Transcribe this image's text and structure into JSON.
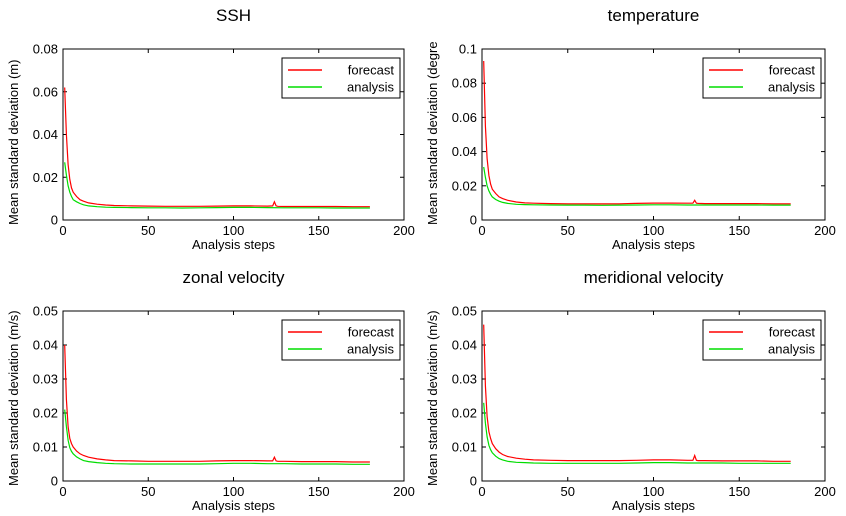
{
  "colors": {
    "forecast": "#ff0000",
    "analysis": "#00dd00",
    "axis": "#000000",
    "background": "#ffffff"
  },
  "chart_data": [
    {
      "type": "line",
      "title": "SSH",
      "xlabel": "Analysis steps",
      "ylabel": "Mean standard deviation (m)",
      "xlim": [
        0,
        200
      ],
      "ylim": [
        0,
        0.08
      ],
      "xticks": [
        0,
        50,
        100,
        150,
        200
      ],
      "yticks": [
        0,
        0.02,
        0.04,
        0.06,
        0.08
      ],
      "x_tick_labels": [
        "0",
        "50",
        "100",
        "150",
        "200"
      ],
      "y_tick_labels": [
        "0",
        "0.02",
        "0.04",
        "0.06",
        "0.08"
      ],
      "legend_position": "top-right",
      "series": [
        {
          "name": "forecast",
          "color": "#ff0000",
          "x": [
            1,
            2,
            3,
            4,
            5,
            6,
            8,
            10,
            12,
            15,
            20,
            25,
            30,
            40,
            50,
            60,
            70,
            80,
            90,
            100,
            110,
            120,
            123,
            124,
            125,
            126,
            130,
            140,
            150,
            160,
            170,
            180
          ],
          "y": [
            0.062,
            0.04,
            0.026,
            0.019,
            0.015,
            0.013,
            0.011,
            0.0095,
            0.0088,
            0.008,
            0.0074,
            0.007,
            0.0068,
            0.0066,
            0.0065,
            0.0064,
            0.0064,
            0.0064,
            0.0065,
            0.0066,
            0.0066,
            0.0065,
            0.0066,
            0.0085,
            0.0066,
            0.0064,
            0.0063,
            0.0063,
            0.0063,
            0.0063,
            0.0062,
            0.0062
          ]
        },
        {
          "name": "analysis",
          "color": "#00dd00",
          "x": [
            1,
            2,
            3,
            4,
            5,
            6,
            8,
            10,
            12,
            15,
            20,
            25,
            30,
            40,
            50,
            60,
            70,
            80,
            90,
            100,
            110,
            120,
            130,
            140,
            150,
            160,
            170,
            180
          ],
          "y": [
            0.027,
            0.021,
            0.016,
            0.013,
            0.011,
            0.0095,
            0.0085,
            0.0077,
            0.0071,
            0.0066,
            0.0062,
            0.006,
            0.0059,
            0.0058,
            0.0057,
            0.0057,
            0.0056,
            0.0057,
            0.0058,
            0.0059,
            0.0059,
            0.0058,
            0.0057,
            0.0057,
            0.0057,
            0.0056,
            0.0056,
            0.0056
          ]
        }
      ]
    },
    {
      "type": "line",
      "title": "temperature",
      "xlabel": "Analysis steps",
      "ylabel": "Mean standard deviation (degre",
      "xlim": [
        0,
        200
      ],
      "ylim": [
        0,
        0.1
      ],
      "xticks": [
        0,
        50,
        100,
        150,
        200
      ],
      "yticks": [
        0,
        0.02,
        0.04,
        0.06,
        0.08,
        0.1
      ],
      "x_tick_labels": [
        "0",
        "50",
        "100",
        "150",
        "200"
      ],
      "y_tick_labels": [
        "0",
        "0.02",
        "0.04",
        "0.06",
        "0.08",
        "0.1"
      ],
      "legend_position": "top-right",
      "series": [
        {
          "name": "forecast",
          "color": "#ff0000",
          "x": [
            1,
            2,
            3,
            4,
            5,
            6,
            8,
            10,
            12,
            15,
            20,
            25,
            30,
            40,
            50,
            60,
            70,
            80,
            90,
            100,
            110,
            120,
            123,
            124,
            125,
            126,
            130,
            140,
            150,
            160,
            170,
            180
          ],
          "y": [
            0.093,
            0.055,
            0.036,
            0.026,
            0.021,
            0.018,
            0.0155,
            0.0135,
            0.0125,
            0.0115,
            0.0105,
            0.01,
            0.0098,
            0.0096,
            0.0095,
            0.0095,
            0.0094,
            0.0095,
            0.0097,
            0.0099,
            0.0099,
            0.0098,
            0.0098,
            0.0115,
            0.0098,
            0.0097,
            0.0096,
            0.0096,
            0.0096,
            0.0096,
            0.0095,
            0.0095
          ]
        },
        {
          "name": "analysis",
          "color": "#00dd00",
          "x": [
            1,
            2,
            3,
            4,
            5,
            6,
            8,
            10,
            12,
            15,
            20,
            25,
            30,
            40,
            50,
            60,
            70,
            80,
            90,
            100,
            110,
            120,
            130,
            140,
            150,
            160,
            170,
            180
          ],
          "y": [
            0.031,
            0.025,
            0.02,
            0.017,
            0.015,
            0.0135,
            0.012,
            0.011,
            0.0103,
            0.0097,
            0.0092,
            0.009,
            0.0089,
            0.0088,
            0.0087,
            0.0087,
            0.0086,
            0.0087,
            0.0088,
            0.0089,
            0.0089,
            0.0088,
            0.0088,
            0.0088,
            0.0088,
            0.0088,
            0.0087,
            0.0087
          ]
        }
      ]
    },
    {
      "type": "line",
      "title": "zonal velocity",
      "xlabel": "Analysis steps",
      "ylabel": "Mean standard deviation (m/s)",
      "xlim": [
        0,
        200
      ],
      "ylim": [
        0,
        0.05
      ],
      "xticks": [
        0,
        50,
        100,
        150,
        200
      ],
      "yticks": [
        0,
        0.01,
        0.02,
        0.03,
        0.04,
        0.05
      ],
      "x_tick_labels": [
        "0",
        "50",
        "100",
        "150",
        "200"
      ],
      "y_tick_labels": [
        "0",
        "0.01",
        "0.02",
        "0.03",
        "0.04",
        "0.05"
      ],
      "legend_position": "top-right",
      "series": [
        {
          "name": "forecast",
          "color": "#ff0000",
          "x": [
            1,
            2,
            3,
            4,
            5,
            6,
            8,
            10,
            12,
            15,
            20,
            25,
            30,
            40,
            50,
            60,
            70,
            80,
            90,
            100,
            110,
            120,
            123,
            124,
            125,
            126,
            130,
            140,
            150,
            160,
            170,
            180
          ],
          "y": [
            0.04,
            0.024,
            0.016,
            0.0125,
            0.011,
            0.01,
            0.0088,
            0.008,
            0.0075,
            0.007,
            0.0065,
            0.0062,
            0.006,
            0.0059,
            0.0058,
            0.0058,
            0.0058,
            0.0058,
            0.0059,
            0.006,
            0.006,
            0.0059,
            0.0059,
            0.007,
            0.0059,
            0.0058,
            0.0058,
            0.0057,
            0.0057,
            0.0057,
            0.0056,
            0.0056
          ]
        },
        {
          "name": "analysis",
          "color": "#00dd00",
          "x": [
            1,
            2,
            3,
            4,
            5,
            6,
            8,
            10,
            12,
            15,
            20,
            25,
            30,
            40,
            50,
            60,
            70,
            80,
            90,
            100,
            110,
            120,
            130,
            140,
            150,
            160,
            170,
            180
          ],
          "y": [
            0.021,
            0.016,
            0.012,
            0.0098,
            0.0087,
            0.008,
            0.0071,
            0.0065,
            0.006,
            0.0057,
            0.0054,
            0.0052,
            0.0051,
            0.005,
            0.005,
            0.005,
            0.005,
            0.005,
            0.0051,
            0.0052,
            0.0052,
            0.0051,
            0.0051,
            0.005,
            0.005,
            0.005,
            0.0049,
            0.0049
          ]
        }
      ]
    },
    {
      "type": "line",
      "title": "meridional velocity",
      "xlabel": "Analysis steps",
      "ylabel": "Mean standard deviation (m/s)",
      "xlim": [
        0,
        200
      ],
      "ylim": [
        0,
        0.05
      ],
      "xticks": [
        0,
        50,
        100,
        150,
        200
      ],
      "yticks": [
        0,
        0.01,
        0.02,
        0.03,
        0.04,
        0.05
      ],
      "x_tick_labels": [
        "0",
        "50",
        "100",
        "150",
        "200"
      ],
      "y_tick_labels": [
        "0",
        "0.01",
        "0.02",
        "0.03",
        "0.04",
        "0.05"
      ],
      "legend_position": "top-right",
      "series": [
        {
          "name": "forecast",
          "color": "#ff0000",
          "x": [
            1,
            2,
            3,
            4,
            5,
            6,
            8,
            10,
            12,
            15,
            20,
            25,
            30,
            40,
            50,
            60,
            70,
            80,
            90,
            100,
            110,
            120,
            123,
            124,
            125,
            126,
            130,
            140,
            150,
            160,
            170,
            180
          ],
          "y": [
            0.046,
            0.028,
            0.019,
            0.0145,
            0.0125,
            0.011,
            0.0095,
            0.0085,
            0.0078,
            0.0072,
            0.0067,
            0.0064,
            0.0062,
            0.0061,
            0.006,
            0.006,
            0.006,
            0.006,
            0.0061,
            0.0062,
            0.0062,
            0.0061,
            0.0061,
            0.0075,
            0.0061,
            0.006,
            0.006,
            0.0059,
            0.0059,
            0.0059,
            0.0058,
            0.0058
          ]
        },
        {
          "name": "analysis",
          "color": "#00dd00",
          "x": [
            1,
            2,
            3,
            4,
            5,
            6,
            8,
            10,
            12,
            15,
            20,
            25,
            30,
            40,
            50,
            60,
            70,
            80,
            90,
            100,
            110,
            120,
            130,
            140,
            150,
            160,
            170,
            180
          ],
          "y": [
            0.023,
            0.017,
            0.013,
            0.0105,
            0.0092,
            0.0083,
            0.0073,
            0.0066,
            0.0062,
            0.0058,
            0.0055,
            0.0054,
            0.0053,
            0.0052,
            0.0052,
            0.0052,
            0.0052,
            0.0052,
            0.0053,
            0.0054,
            0.0054,
            0.0053,
            0.0053,
            0.0053,
            0.0052,
            0.0052,
            0.0052,
            0.0052
          ]
        }
      ]
    }
  ]
}
